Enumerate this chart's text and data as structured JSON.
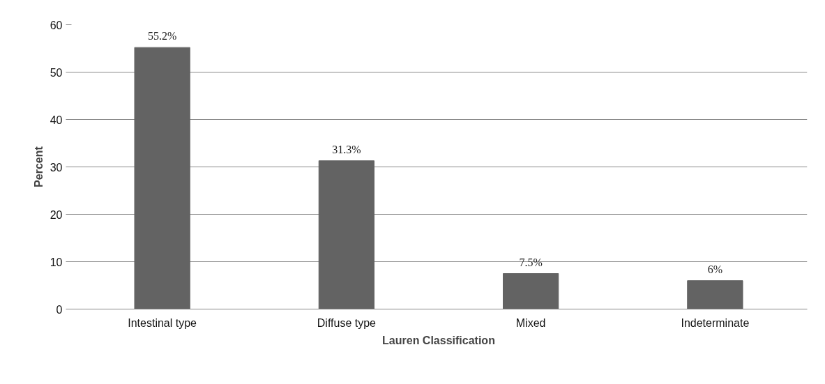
{
  "chart_data": {
    "type": "bar",
    "xlabel": "Lauren Classification",
    "ylabel": "Percent",
    "categories": [
      "Intestinal type",
      "Diffuse type",
      "Mixed",
      "Indeterminate"
    ],
    "values": [
      55.2,
      31.3,
      7.5,
      6
    ],
    "value_labels": [
      "55.2%",
      "31.3%",
      "7.5%",
      "6%"
    ],
    "color": "#636363",
    "ylim": [
      0,
      60
    ],
    "yticks": [
      0,
      10,
      20,
      30,
      40,
      50,
      60
    ],
    "grid": "y"
  }
}
